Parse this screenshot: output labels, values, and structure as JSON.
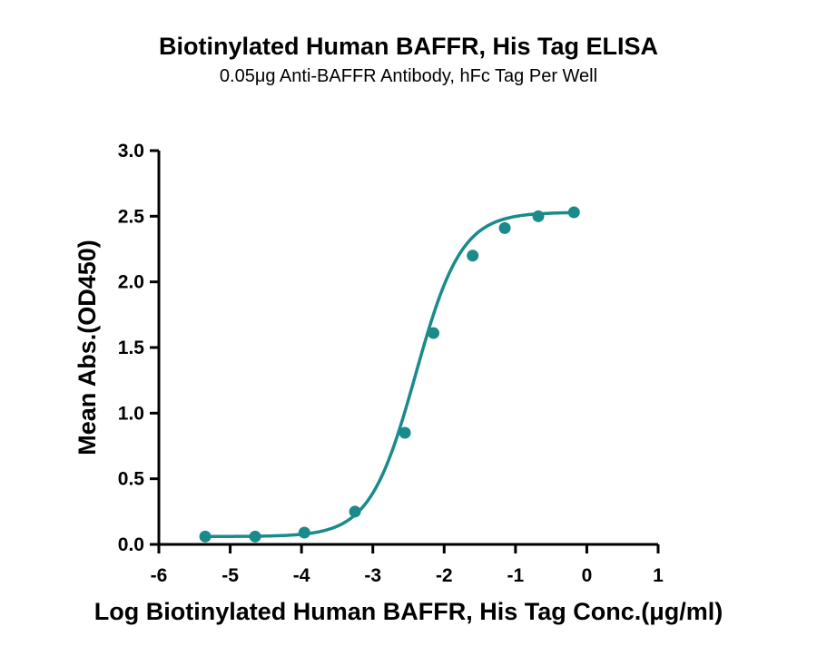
{
  "chart_data": {
    "type": "line",
    "title": "Biotinylated Human BAFFR, His Tag ELISA",
    "subtitle": "0.05μg Anti-BAFFR Antibody, hFc Tag Per Well",
    "xlabel": "Log Biotinylated Human BAFFR, His Tag Conc.(μg/ml)",
    "ylabel": "Mean Abs.(OD450)",
    "xlim": [
      -6,
      1
    ],
    "ylim": [
      0,
      3
    ],
    "x_ticks": [
      -6,
      -5,
      -4,
      -3,
      -2,
      -1,
      0,
      1
    ],
    "y_ticks": [
      0,
      0.5,
      1,
      1.5,
      2,
      2.5,
      3
    ],
    "x_tick_labels": [
      "-6",
      "-5",
      "-4",
      "-3",
      "-2",
      "-1",
      "0",
      "1"
    ],
    "y_tick_labels": [
      "0.0",
      "0.5",
      "1.0",
      "1.5",
      "2.0",
      "2.5",
      "3.0"
    ],
    "grid": false,
    "legend": "none",
    "color": "#1a8a8a",
    "series": [
      {
        "points": [
          {
            "x": -5.35,
            "y": 0.06
          },
          {
            "x": -4.65,
            "y": 0.06
          },
          {
            "x": -3.96,
            "y": 0.09
          },
          {
            "x": -3.25,
            "y": 0.25
          },
          {
            "x": -2.55,
            "y": 0.85
          },
          {
            "x": -2.15,
            "y": 1.61
          },
          {
            "x": -1.6,
            "y": 2.2
          },
          {
            "x": -1.15,
            "y": 2.41
          },
          {
            "x": -0.68,
            "y": 2.5
          },
          {
            "x": -0.18,
            "y": 2.53
          }
        ],
        "fit": {
          "model": "4PL",
          "bottom": 0.06,
          "top": 2.53,
          "logEC50": -2.4,
          "hill": 1.35
        }
      }
    ]
  }
}
